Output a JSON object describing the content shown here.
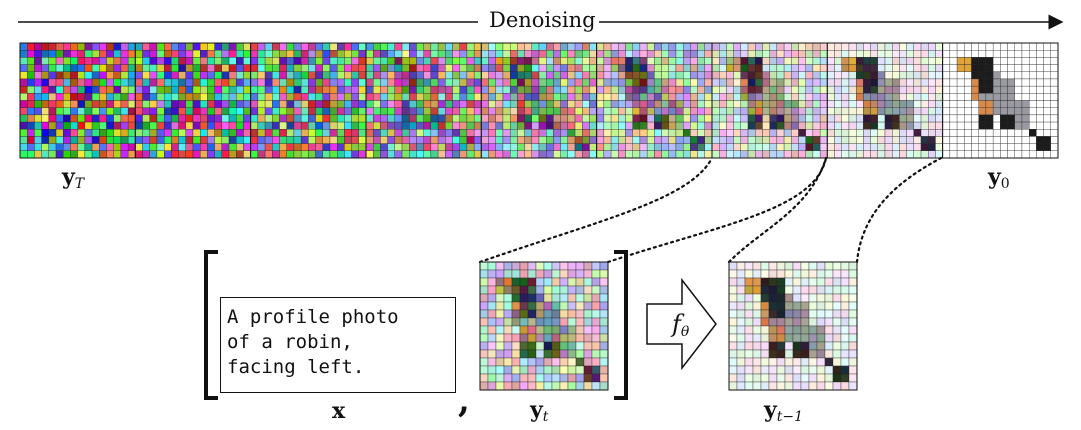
{
  "header": {
    "label": "Denoising"
  },
  "strip": {
    "start_label": "y",
    "start_sub": "T",
    "end_label": "y",
    "end_sub": "0",
    "frame_count": 9
  },
  "inputs": {
    "prompt_text": "A profile photo\nof a robin,\nfacing left.",
    "prompt_label": "x",
    "separator": ",",
    "noisy_label": "y",
    "noisy_sub": "t"
  },
  "model": {
    "name": "f",
    "sub": "θ"
  },
  "output": {
    "label": "y",
    "sub": "t−1"
  },
  "colors": {
    "robin_dark": "#1c1c1c",
    "robin_orange": "#d98a4a",
    "robin_gray": "#9a9aa2",
    "robin_beak": "#e0a33a",
    "grid_line": "#222222"
  }
}
